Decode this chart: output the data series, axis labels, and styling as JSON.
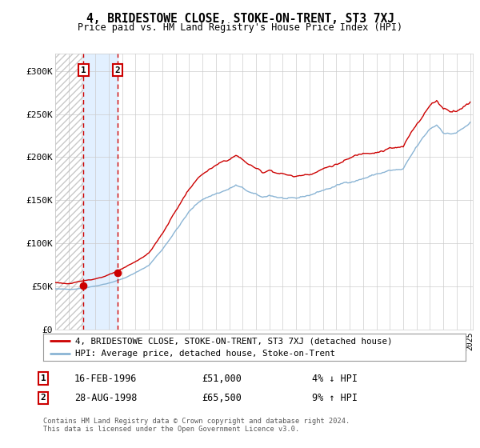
{
  "title": "4, BRIDESTOWE CLOSE, STOKE-ON-TRENT, ST3 7XJ",
  "subtitle": "Price paid vs. HM Land Registry's House Price Index (HPI)",
  "legend_line1": "4, BRIDESTOWE CLOSE, STOKE-ON-TRENT, ST3 7XJ (detached house)",
  "legend_line2": "HPI: Average price, detached house, Stoke-on-Trent",
  "transaction1_date": "16-FEB-1996",
  "transaction1_price": 51000,
  "transaction1_label": "4% ↓ HPI",
  "transaction2_date": "28-AUG-1998",
  "transaction2_price": 65500,
  "transaction2_label": "9% ↑ HPI",
  "footnote": "Contains HM Land Registry data © Crown copyright and database right 2024.\nThis data is licensed under the Open Government Licence v3.0.",
  "hpi_color": "#8ab4d4",
  "price_color": "#cc0000",
  "bg_color": "#ffffff",
  "grid_color": "#cccccc",
  "shade_color": "#ddeeff",
  "ylim": [
    0,
    320000
  ],
  "yticks": [
    0,
    50000,
    100000,
    150000,
    200000,
    250000,
    300000
  ],
  "ytick_labels": [
    "£0",
    "£50K",
    "£100K",
    "£150K",
    "£200K",
    "£250K",
    "£300K"
  ],
  "t1_x": 1996.12,
  "t2_x": 1998.65,
  "xmin": 1994.0,
  "xmax": 2025.2
}
